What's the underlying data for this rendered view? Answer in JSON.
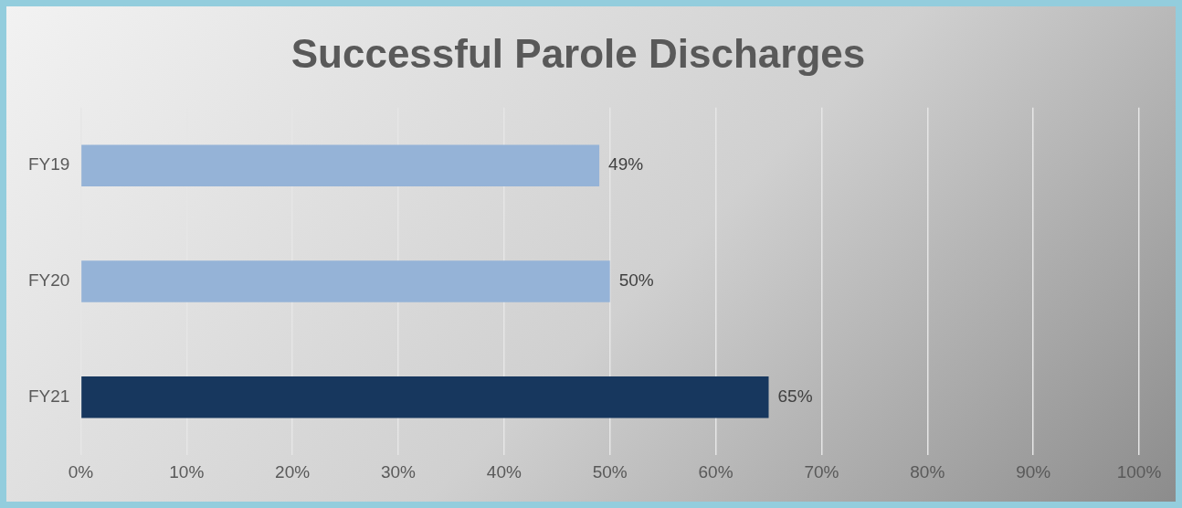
{
  "chart_data": {
    "type": "bar",
    "orientation": "horizontal",
    "title": "Successful Parole Discharges",
    "categories": [
      "FY19",
      "FY20",
      "FY21"
    ],
    "values": [
      49,
      50,
      65
    ],
    "colors": [
      "#95b3d7",
      "#95b3d7",
      "#17375e"
    ],
    "value_labels": [
      "49%",
      "50%",
      "65%"
    ],
    "xlim": [
      0,
      100
    ],
    "xticks": [
      {
        "value": 0,
        "label": "0%"
      },
      {
        "value": 10,
        "label": "10%"
      },
      {
        "value": 20,
        "label": "20%"
      },
      {
        "value": 30,
        "label": "30%"
      },
      {
        "value": 40,
        "label": "40%"
      },
      {
        "value": 50,
        "label": "50%"
      },
      {
        "value": 60,
        "label": "60%"
      },
      {
        "value": 70,
        "label": "70%"
      },
      {
        "value": 80,
        "label": "80%"
      },
      {
        "value": 90,
        "label": "90%"
      },
      {
        "value": 100,
        "label": "100%"
      }
    ],
    "grid": "x",
    "legend": false
  }
}
